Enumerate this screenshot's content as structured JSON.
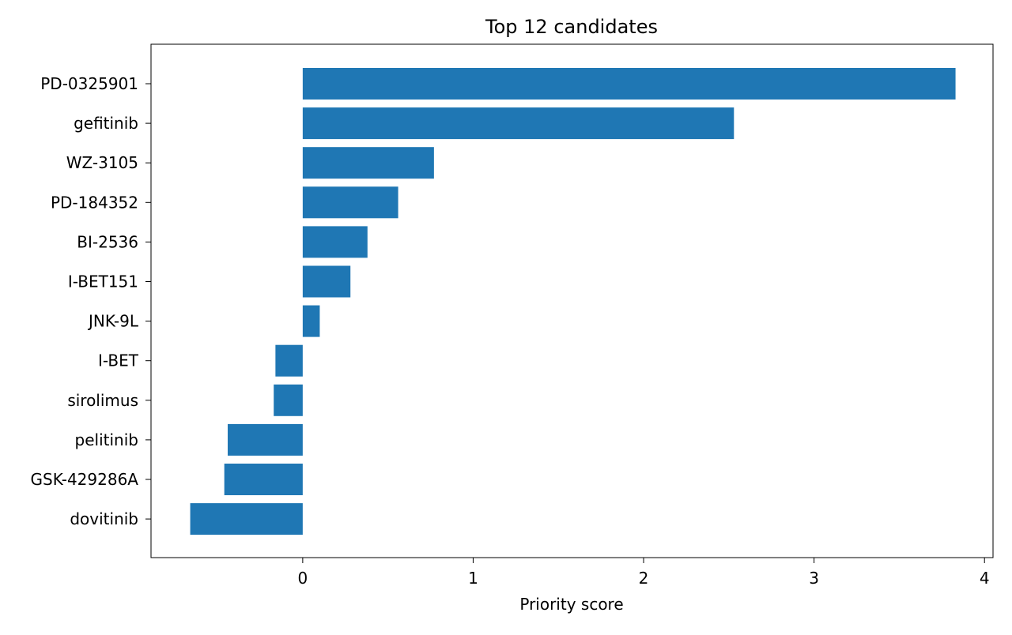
{
  "chart_data": {
    "type": "bar",
    "orientation": "horizontal",
    "title": "Top 12 candidates",
    "xlabel": "Priority score",
    "ylabel": "",
    "categories": [
      "PD-0325901",
      "gefitinib",
      "WZ-3105",
      "PD-184352",
      "BI-2536",
      "I-BET151",
      "JNK-9L",
      "I-BET",
      "sirolimus",
      "pelitinib",
      "GSK-429286A",
      "dovitinib"
    ],
    "values": [
      3.83,
      2.53,
      0.77,
      0.56,
      0.38,
      0.28,
      0.1,
      -0.16,
      -0.17,
      -0.44,
      -0.46,
      -0.66
    ],
    "xlim": [
      -0.89,
      4.05
    ],
    "xticks": [
      0,
      1,
      2,
      3,
      4
    ],
    "bar_color": "#1f77b4",
    "grid": false,
    "legend": "none"
  }
}
